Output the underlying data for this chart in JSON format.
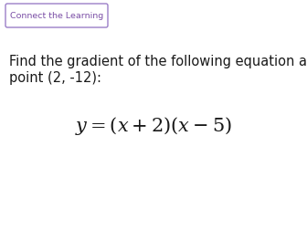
{
  "background_color": "#ffffff",
  "badge_text": "Connect the Learning",
  "badge_text_color": "#7B4FA6",
  "badge_border_color": "#9B7EC8",
  "badge_bg_color": "#ffffff",
  "body_text_line1": "Find the gradient of the following equation at the",
  "body_text_line2": "point (2, -12):",
  "body_text_color": "#1a1a1a",
  "body_fontsize": 10.5,
  "formula": "$\\mathit{y} = (\\mathit{x} + 2)(\\mathit{x} - 5)$",
  "formula_color": "#1a1a1a",
  "formula_fontsize": 15
}
